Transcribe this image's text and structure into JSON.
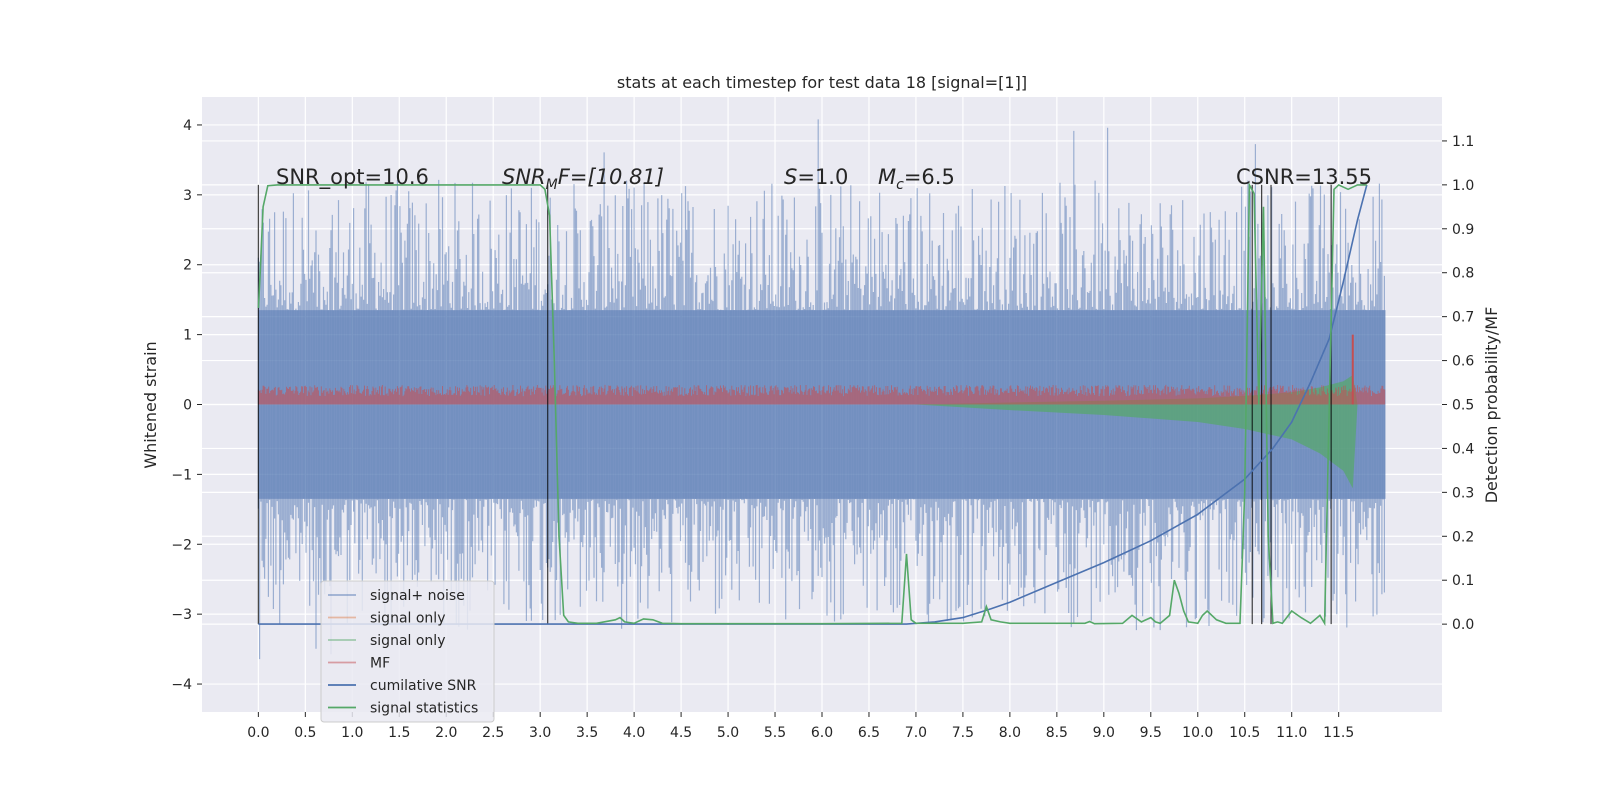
{
  "chart_data": {
    "type": "line",
    "title": "stats at each timestep for test data 18 [signal=[1]]",
    "ylabel": "Whitened strain",
    "y2label": "Detection probability/MF",
    "xlim": [
      -0.6,
      12.6
    ],
    "ylim": [
      -4.4,
      4.4
    ],
    "y2lim": [
      -0.2,
      1.2
    ],
    "x_ticks": [
      0.0,
      0.5,
      1.0,
      1.5,
      2.0,
      2.5,
      3.0,
      3.5,
      4.0,
      4.5,
      5.0,
      5.5,
      6.0,
      6.5,
      7.0,
      7.5,
      8.0,
      8.5,
      9.0,
      9.5,
      10.0,
      10.5,
      11.0,
      11.5
    ],
    "x_tick_labels": [
      "0.0",
      "0.5",
      "1.0",
      "1.5",
      "2.0",
      "2.5",
      "3.0",
      "3.5",
      "4.0",
      "4.5",
      "5.0",
      "5.5",
      "6.0",
      "6.5",
      "7.0",
      "7.5",
      "8.0",
      "8.5",
      "9.0",
      "9.5",
      "10.0",
      "10.5",
      "11.0",
      "11.5"
    ],
    "y_ticks": [
      -4,
      -3,
      -2,
      -1,
      0,
      1,
      2,
      3,
      4
    ],
    "y_tick_labels": [
      "−4",
      "−3",
      "−2",
      "−1",
      "0",
      "1",
      "2",
      "3",
      "4"
    ],
    "y2_ticks": [
      0.0,
      0.1,
      0.2,
      0.3,
      0.4,
      0.5,
      0.6,
      0.7,
      0.8,
      0.9,
      1.0,
      1.1
    ],
    "y2_tick_labels": [
      "0.0",
      "0.1",
      "0.2",
      "0.3",
      "0.4",
      "0.5",
      "0.6",
      "0.7",
      "0.8",
      "0.9",
      "1.0",
      "1.1"
    ],
    "grid": true,
    "legend_position": "lower-left",
    "annotations": {
      "snr_opt": "SNR_opt=10.6",
      "snr_mf_main": "SNR",
      "snr_mf_sub": "M",
      "snr_mf_rest": "F=[10.81]",
      "s_italic": "S",
      "s_rest": "=1.0",
      "mc_italic": "M",
      "mc_sub": "c",
      "mc_rest": "=6.5",
      "csnr": "CSNR=13.55"
    },
    "legend": [
      {
        "name": "signal+ noise",
        "color": "#4c72b0",
        "alpha": 0.5
      },
      {
        "name": "signal only",
        "color": "#dd8452",
        "alpha": 0.5
      },
      {
        "name": "signal only",
        "color": "#55a868",
        "alpha": 0.5
      },
      {
        "name": "MF",
        "color": "#c44e52",
        "alpha": 0.5
      },
      {
        "name": "cumilative SNR",
        "color": "#4c72b0",
        "alpha": 1
      },
      {
        "name": "signal statistics",
        "color": "#55a868",
        "alpha": 1
      }
    ],
    "series": {
      "noise_band": {
        "x_range": [
          0.0,
          12.0
        ],
        "band_min": -1.35,
        "band_max": 1.35,
        "spike_max": 4.1,
        "spike_min": -3.9,
        "color": "#4c72b0"
      },
      "signal_envelope": {
        "x": [
          7.0,
          8.0,
          9.0,
          10.0,
          10.5,
          11.0,
          11.3,
          11.55,
          11.65,
          11.7
        ],
        "amp": [
          0.0,
          0.08,
          0.15,
          0.25,
          0.35,
          0.5,
          0.7,
          0.95,
          1.2,
          0.0
        ],
        "color": "#55a868"
      },
      "mf_band": {
        "x_range": [
          0.0,
          12.0
        ],
        "base": 0.12,
        "spike_x": 11.65,
        "spike_y": 1.0,
        "color": "#c44e52"
      },
      "cumulative_snr": {
        "x": [
          0.0,
          6.9,
          7.2,
          7.5,
          7.8,
          8.0,
          8.5,
          9.0,
          9.5,
          10.0,
          10.5,
          10.8,
          11.0,
          11.2,
          11.4,
          11.55,
          11.7,
          11.8
        ],
        "y2": [
          0.0,
          0.0,
          0.005,
          0.015,
          0.035,
          0.05,
          0.095,
          0.14,
          0.19,
          0.25,
          0.33,
          0.4,
          0.46,
          0.55,
          0.65,
          0.78,
          0.92,
          1.0
        ],
        "color": "#4c72b0"
      },
      "signal_statistics": {
        "x": [
          0.0,
          0.02,
          0.05,
          0.1,
          0.2,
          0.5,
          1.0,
          2.0,
          3.0,
          3.05,
          3.1,
          3.15,
          3.2,
          3.25,
          3.3,
          3.4,
          3.6,
          3.8,
          3.85,
          3.9,
          4.0,
          4.1,
          4.2,
          4.3,
          4.5,
          5.0,
          6.0,
          6.85,
          6.9,
          6.95,
          7.0,
          7.5,
          7.7,
          7.75,
          7.8,
          7.9,
          8.0,
          8.5,
          8.8,
          8.85,
          8.9,
          9.2,
          9.3,
          9.4,
          9.5,
          9.55,
          9.6,
          9.7,
          9.75,
          9.8,
          9.85,
          9.9,
          10.0,
          10.05,
          10.1,
          10.2,
          10.3,
          10.45,
          10.5,
          10.55,
          10.6,
          10.65,
          10.7,
          10.75,
          10.8,
          10.85,
          10.9,
          11.0,
          11.1,
          11.2,
          11.3,
          11.35,
          11.4,
          11.45,
          11.5,
          11.6,
          11.7,
          11.8
        ],
        "y2": [
          0.72,
          0.8,
          0.95,
          0.998,
          1.0,
          1.0,
          1.0,
          1.0,
          1.0,
          0.99,
          0.93,
          0.6,
          0.2,
          0.02,
          0.005,
          0.002,
          0.002,
          0.01,
          0.015,
          0.005,
          0.002,
          0.012,
          0.01,
          0.002,
          0.001,
          0.001,
          0.001,
          0.002,
          0.16,
          0.01,
          0.002,
          0.002,
          0.005,
          0.04,
          0.01,
          0.005,
          0.002,
          0.002,
          0.002,
          0.006,
          0.001,
          0.002,
          0.02,
          0.005,
          0.015,
          0.005,
          0.002,
          0.02,
          0.1,
          0.07,
          0.03,
          0.005,
          0.002,
          0.02,
          0.03,
          0.01,
          0.002,
          0.002,
          0.3,
          1.0,
          0.98,
          0.5,
          0.95,
          0.2,
          0.002,
          0.005,
          0.002,
          0.03,
          0.015,
          0.002,
          0.02,
          0.002,
          0.5,
          0.99,
          1.0,
          0.99,
          1.0,
          1.0
        ],
        "color": "#55a868"
      },
      "vlines": {
        "x": [
          0.0,
          3.08,
          10.58,
          10.68,
          10.78,
          11.42
        ],
        "y2_from": 0.0,
        "y2_to": 1.0,
        "color": "#000000"
      }
    }
  }
}
